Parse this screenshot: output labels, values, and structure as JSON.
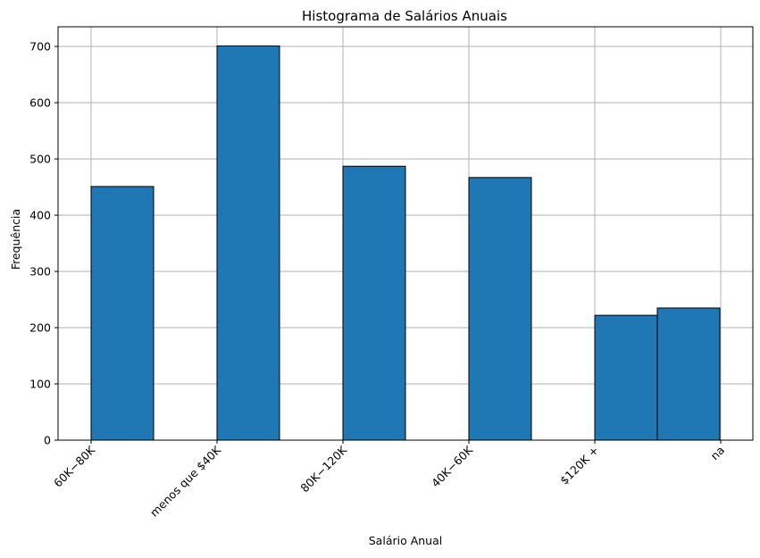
{
  "chart_data": {
    "type": "bar",
    "title": "Histograma de Salários Anuais",
    "xlabel": "Salário Anual",
    "ylabel": "Frequência",
    "ylim": [
      0,
      735
    ],
    "yticks": [
      0,
      100,
      200,
      300,
      400,
      500,
      600,
      700
    ],
    "grid": true,
    "categories": [
      "60K−80K",
      "menos que $40K",
      "80K−120K",
      "40K−60K",
      "$120K +",
      "na"
    ],
    "xticks_index": [
      0,
      1,
      2,
      3,
      4,
      5
    ],
    "bars": [
      {
        "category": "60K−80K",
        "value": 451
      },
      {
        "category": "menos que $40K",
        "value": 701
      },
      {
        "category": "80K−120K",
        "value": 487
      },
      {
        "category": "40K−60K",
        "value": 467
      },
      {
        "category": "$120K +",
        "value": 222
      },
      {
        "category": "na",
        "value": 235
      }
    ]
  }
}
